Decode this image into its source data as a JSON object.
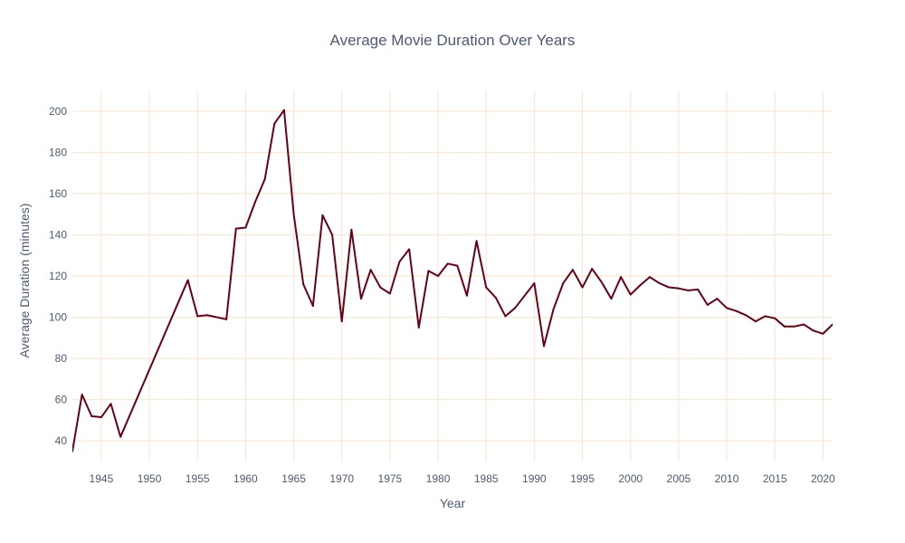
{
  "chart_data": {
    "type": "line",
    "title": "Average Movie Duration Over Years",
    "xlabel": "Year",
    "ylabel": "Average Duration (minutes)",
    "xlim": [
      1942,
      2021
    ],
    "ylim": [
      30,
      210
    ],
    "x_ticks": [
      1945,
      1950,
      1955,
      1960,
      1965,
      1970,
      1975,
      1980,
      1985,
      1990,
      1995,
      2000,
      2005,
      2010,
      2015,
      2020
    ],
    "y_ticks": [
      40,
      60,
      80,
      100,
      120,
      140,
      160,
      180,
      200
    ],
    "grid": true,
    "legend": false,
    "colors": {
      "line": "#6b0015",
      "grid": "#fde3cc",
      "text": "#4c5a75"
    },
    "series": [
      {
        "x": [
          1942,
          1943,
          1944,
          1945,
          1946,
          1947,
          1954,
          1955,
          1956,
          1958,
          1959,
          1960,
          1961,
          1962,
          1963,
          1964,
          1965,
          1966,
          1967,
          1968,
          1969,
          1970,
          1971,
          1972,
          1973,
          1974,
          1975,
          1976,
          1977,
          1978,
          1979,
          1980,
          1981,
          1982,
          1983,
          1984,
          1985,
          1986,
          1987,
          1988,
          1990,
          1991,
          1992,
          1993,
          1994,
          1995,
          1996,
          1997,
          1998,
          1999,
          2000,
          2001,
          2002,
          2003,
          2004,
          2005,
          2006,
          2007,
          2008,
          2009,
          2010,
          2011,
          2012,
          2013,
          2014,
          2015,
          2016,
          2017,
          2018,
          2019,
          2020,
          2021
        ],
        "values": [
          35,
          62.5,
          52,
          51.5,
          58,
          42,
          118,
          100.5,
          101,
          99,
          143,
          143.5,
          156,
          167,
          194,
          200.5,
          150,
          116,
          105.5,
          149.5,
          140,
          98,
          142.5,
          109,
          123,
          114.5,
          111.5,
          127,
          133,
          95,
          122.5,
          120,
          126,
          125,
          110.5,
          137,
          114.5,
          109.5,
          100.5,
          104.5,
          116.5,
          86,
          104,
          116.5,
          123,
          114.5,
          123.5,
          117,
          109,
          119.5,
          111,
          115.5,
          119.5,
          116.5,
          114.5,
          114,
          113,
          113.5,
          106,
          109,
          104.5,
          103,
          101,
          98,
          100.5,
          99.5,
          95.5,
          95.5,
          96.5,
          93.5,
          92,
          96.5
        ]
      }
    ]
  }
}
